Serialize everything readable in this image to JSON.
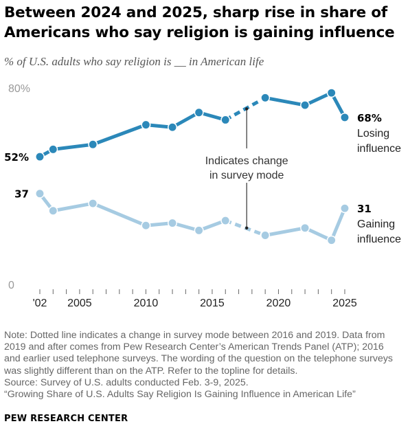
{
  "title": "Between 2024 and 2025, sharp rise in share of Americans who say religion is gaining influence",
  "subtitle": "% of U.S. adults who say religion is __ in American life",
  "chart_data": {
    "type": "line",
    "x_ticks": [
      "'02",
      "2005",
      "2010",
      "2015",
      "2020",
      "2025"
    ],
    "x_tick_values": [
      2002,
      2005,
      2010,
      2015,
      2020,
      2025
    ],
    "y_ticks": [
      "80%",
      "0"
    ],
    "y_tick_values": [
      80,
      0
    ],
    "ylim": [
      0,
      80
    ],
    "grid": false,
    "series": [
      {
        "name": "Losing influence",
        "name_lines": [
          "Losing",
          "influence"
        ],
        "color": "#2b88b9",
        "start_label": "52%",
        "end_label": "68%",
        "points": [
          {
            "x": 2002,
            "y": 52
          },
          {
            "x": 2003,
            "y": 55
          },
          {
            "x": 2006,
            "y": 57
          },
          {
            "x": 2010,
            "y": 65
          },
          {
            "x": 2012,
            "y": 64
          },
          {
            "x": 2014,
            "y": 70
          },
          {
            "x": 2016,
            "y": 67
          },
          {
            "x": 2019,
            "y": 76
          },
          {
            "x": 2022,
            "y": 73
          },
          {
            "x": 2024,
            "y": 78
          },
          {
            "x": 2025,
            "y": 68
          }
        ]
      },
      {
        "name": "Gaining influence",
        "name_lines": [
          "Gaining",
          "influence"
        ],
        "color": "#a6cbe2",
        "start_label": "37",
        "end_label": "31",
        "points": [
          {
            "x": 2002,
            "y": 37
          },
          {
            "x": 2003,
            "y": 30
          },
          {
            "x": 2006,
            "y": 33
          },
          {
            "x": 2010,
            "y": 24
          },
          {
            "x": 2012,
            "y": 25
          },
          {
            "x": 2014,
            "y": 22
          },
          {
            "x": 2016,
            "y": 26
          },
          {
            "x": 2019,
            "y": 20
          },
          {
            "x": 2022,
            "y": 23
          },
          {
            "x": 2024,
            "y": 18
          },
          {
            "x": 2025,
            "y": 31
          }
        ]
      }
    ],
    "mode_change_between": [
      2016,
      2019
    ],
    "annotation": [
      "Indicates change",
      "in survey mode"
    ]
  },
  "note_lines": [
    "Note: Dotted line indicates a change in survey mode between 2016 and 2019. Data from",
    "2019 and after comes from Pew Research Center’s American Trends Panel (ATP); 2016",
    "and earlier used telephone surveys. The wording of the question on the telephone surveys",
    "was slightly different than on the ATP. Refer to the topline for details.",
    "Source: Survey of U.S. adults conducted Feb. 3-9, 2025.",
    "“Growing Share of U.S. Adults Say Religion Is Gaining Influence in American Life”"
  ],
  "footer": "PEW RESEARCH CENTER"
}
